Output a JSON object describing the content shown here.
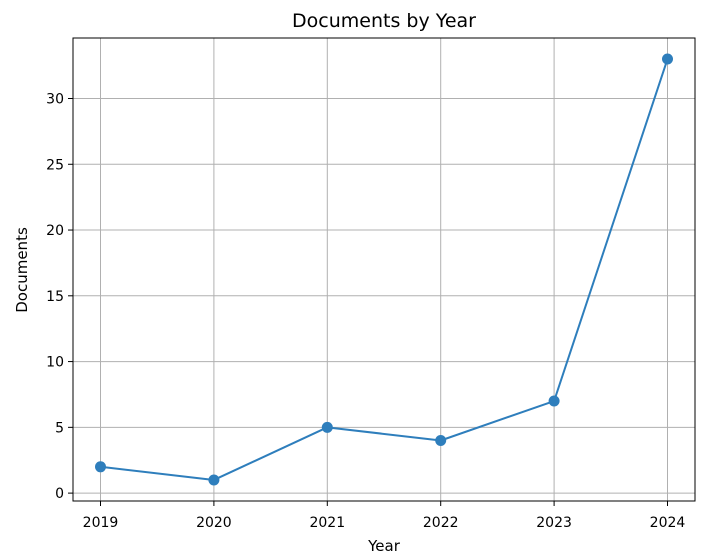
{
  "chart_data": {
    "type": "line",
    "title": "Documents by Year",
    "xlabel": "Year",
    "ylabel": "Documents",
    "x": [
      "2019",
      "2020",
      "2021",
      "2022",
      "2023",
      "2024"
    ],
    "series": [
      {
        "values": [
          2,
          1,
          5,
          4,
          7,
          33
        ],
        "color": "#2e7ebc"
      }
    ],
    "ylim": [
      -0.6,
      34.6
    ],
    "yticks": [
      "0",
      "5",
      "10",
      "15",
      "20",
      "25",
      "30"
    ],
    "grid": true,
    "markers": true
  }
}
